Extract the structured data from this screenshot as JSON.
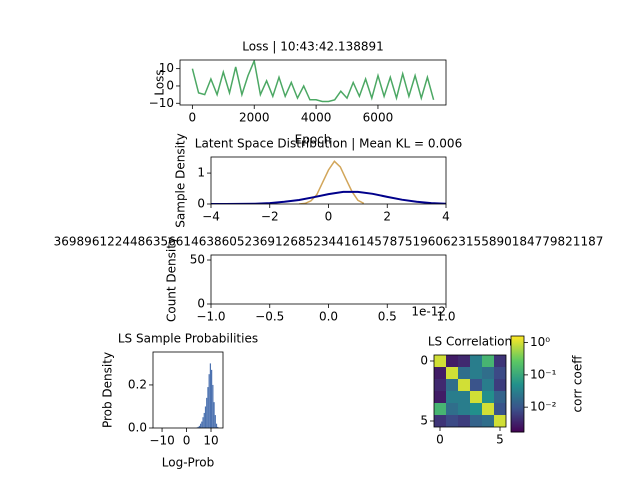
{
  "chart_data": [
    {
      "type": "line",
      "title": "Loss | 10:43:42.138891",
      "x_label": "Epoch",
      "y_label": "Loss",
      "xlim": [
        -400,
        8200
      ],
      "ylim": [
        -11,
        15
      ],
      "xticks": [
        0,
        2000,
        4000,
        6000
      ],
      "yticks": [
        {
          "value": -10,
          "label": "−10"
        },
        0,
        10
      ],
      "series": [
        {
          "color": "#4ca864",
          "x": [
            0,
            200,
            400,
            600,
            800,
            1000,
            1200,
            1400,
            1600,
            1800,
            2000,
            2200,
            2400,
            2600,
            2800,
            3000,
            3200,
            3400,
            3600,
            3800,
            4000,
            4200,
            4400,
            4600,
            4800,
            5000,
            5200,
            5400,
            5600,
            5800,
            6000,
            6200,
            6400,
            6600,
            6800,
            7000,
            7200,
            7400,
            7600,
            7800
          ],
          "values": [
            10,
            -4,
            -5,
            4,
            -5,
            8,
            -4,
            11,
            -5,
            6,
            14.5,
            -5,
            3,
            -6,
            5,
            -6,
            2,
            -7,
            0,
            -8,
            -8,
            -9,
            -9,
            -8,
            -3,
            -7,
            2,
            -6,
            4,
            -7,
            6,
            -6,
            5,
            -7,
            7,
            -6,
            6,
            -7,
            5,
            -8
          ]
        }
      ]
    },
    {
      "type": "line",
      "title": "Latent Space Distribution | Mean KL = 0.006",
      "y_label": "Sample Density",
      "xlim": [
        -4,
        4
      ],
      "ylim": [
        0,
        1.52
      ],
      "xticks": [
        {
          "value": -4,
          "label": "−4"
        },
        {
          "value": -2,
          "label": "−2"
        },
        0,
        2,
        4
      ],
      "yticks": [
        0,
        1
      ],
      "series": [
        {
          "color": "#d2a65a",
          "x": [
            -1,
            -0.8,
            -0.6,
            -0.4,
            -0.2,
            0,
            0.2,
            0.4,
            0.6,
            0.8,
            1,
            1.2
          ],
          "values": [
            0,
            0.02,
            0.1,
            0.3,
            0.7,
            1.1,
            1.38,
            1.2,
            0.8,
            0.4,
            0.12,
            0.02
          ]
        },
        {
          "color": "#00008b",
          "x": [
            -4,
            -3.5,
            -3,
            -2.5,
            -2,
            -1.5,
            -1,
            -0.5,
            0,
            0.5,
            1,
            1.5,
            2,
            2.5,
            3,
            3.5,
            4
          ],
          "values": [
            0,
            0.0004,
            0.002,
            0.009,
            0.03,
            0.07,
            0.13,
            0.22,
            0.32,
            0.39,
            0.39,
            0.33,
            0.23,
            0.14,
            0.07,
            0.03,
            0.01
          ]
        }
      ]
    },
    {
      "type": "line",
      "title": "369896122448635661463860523691268523441614578751960623155890184779821187",
      "y_label": "Count Density",
      "offset_text": "1e-12",
      "xlim": [
        -1,
        1
      ],
      "ylim": [
        0,
        55.7
      ],
      "xticks": [
        {
          "value": -1,
          "label": "−1.0"
        },
        {
          "value": -0.5,
          "label": "−0.5"
        },
        {
          "value": 0,
          "label": "0.0"
        },
        {
          "value": 0.5,
          "label": "0.5"
        },
        {
          "value": 1,
          "label": "1.0"
        }
      ],
      "yticks": [
        0,
        50
      ],
      "series": []
    },
    {
      "type": "histogram",
      "title": "LS Sample Probabilities",
      "x_label": "Log-Prob",
      "y_label": "Prob Density",
      "xlim": [
        -13.7,
        14.9
      ],
      "ylim": [
        0,
        0.353
      ],
      "color": "#4c72b0",
      "xticks": [
        {
          "value": -10,
          "label": "−10"
        },
        0,
        10
      ],
      "yticks": [
        {
          "value": 0,
          "label": "0.0"
        },
        {
          "value": 0.2,
          "label": "0.2"
        }
      ],
      "bins": [
        4,
        4.5,
        5,
        5.5,
        6,
        6.5,
        7,
        7.5,
        8,
        8.5,
        9,
        9.5,
        10,
        10.5,
        11,
        11.5,
        12,
        12.5,
        13
      ],
      "values": [
        0.002,
        0.005,
        0.01,
        0.02,
        0.03,
        0.05,
        0.07,
        0.1,
        0.14,
        0.19,
        0.25,
        0.3,
        0.27,
        0.2,
        0.12,
        0.06,
        0.02,
        0.005
      ]
    },
    {
      "type": "heatmap",
      "title": "LS Correlation",
      "colorbar_label": "corr coeff",
      "colormap": "viridis",
      "log_scale": true,
      "xlim": [
        -0.5,
        5.5
      ],
      "ylim": [
        5.5,
        -0.5
      ],
      "xticks": [
        0,
        5
      ],
      "yticks": [
        0,
        5
      ],
      "clim": [
        0.0017,
        1.6
      ],
      "cticks": [
        {
          "value": 1,
          "label": "10⁰"
        },
        {
          "value": 0.1,
          "label": "10⁻¹"
        },
        {
          "value": 0.01,
          "label": "10⁻²"
        }
      ],
      "matrix": [
        [
          1,
          0.003,
          0.004,
          0.03,
          0.15,
          0.005
        ],
        [
          0.003,
          1,
          0.02,
          0.03,
          0.02,
          0.008
        ],
        [
          0.004,
          0.02,
          1,
          0.01,
          0.03,
          0.006
        ],
        [
          0.003,
          0.03,
          0.03,
          1,
          0.05,
          0.015
        ],
        [
          0.15,
          0.02,
          0.03,
          0.05,
          1,
          0.01
        ],
        [
          0.005,
          0.008,
          0.006,
          0.015,
          0.02,
          1
        ]
      ]
    }
  ]
}
